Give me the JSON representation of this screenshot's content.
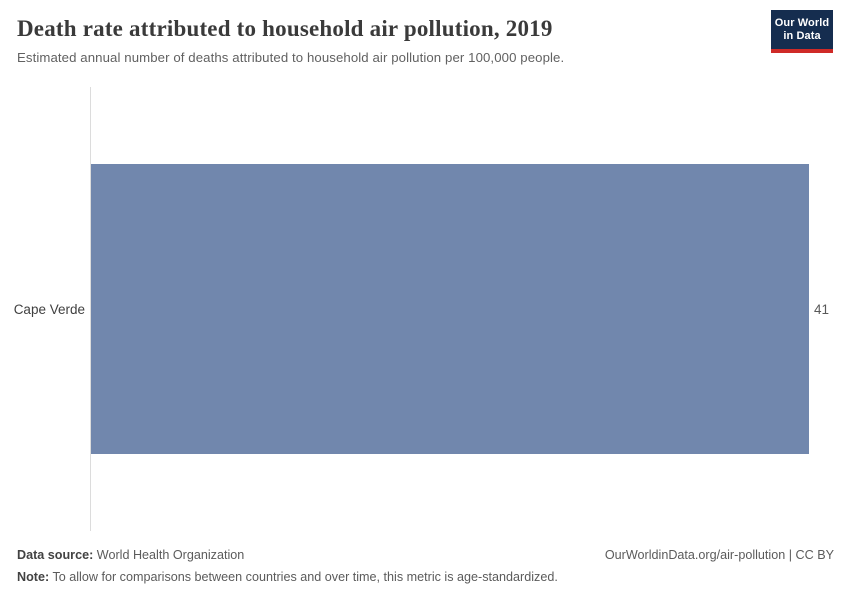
{
  "header": {
    "title": "Death rate attributed to household air pollution, 2019",
    "subtitle": "Estimated annual number of deaths attributed to household air pollution per 100,000 people.",
    "logo": {
      "line1": "Our World",
      "line2": "in Data"
    }
  },
  "chart_data": {
    "type": "bar",
    "orientation": "horizontal",
    "title": "Death rate attributed to household air pollution, 2019",
    "subtitle": "Estimated annual number of deaths attributed to household air pollution per 100,000 people.",
    "categories": [
      "Cape Verde"
    ],
    "values": [
      41
    ],
    "xlabel": "",
    "ylabel": "",
    "xlim": [
      0,
      41
    ],
    "grid": false,
    "legend": "none",
    "bar_color": "#7187ad",
    "axis_line_color": "#dcdcdc"
  },
  "footer": {
    "datasource_label": "Data source:",
    "datasource_value": " World Health Organization",
    "license": "OurWorldinData.org/air-pollution | CC BY",
    "note_label": "Note:",
    "note_value": " To allow for comparisons between countries and over time, this metric is age-standardized."
  },
  "colors": {
    "bar": "#7187ad",
    "logo_navy": "#152d4f",
    "logo_red": "#cf2a27",
    "title_text": "#3a3a3a",
    "subtitle_text": "#616161",
    "footer_text": "#5b5b5b"
  }
}
